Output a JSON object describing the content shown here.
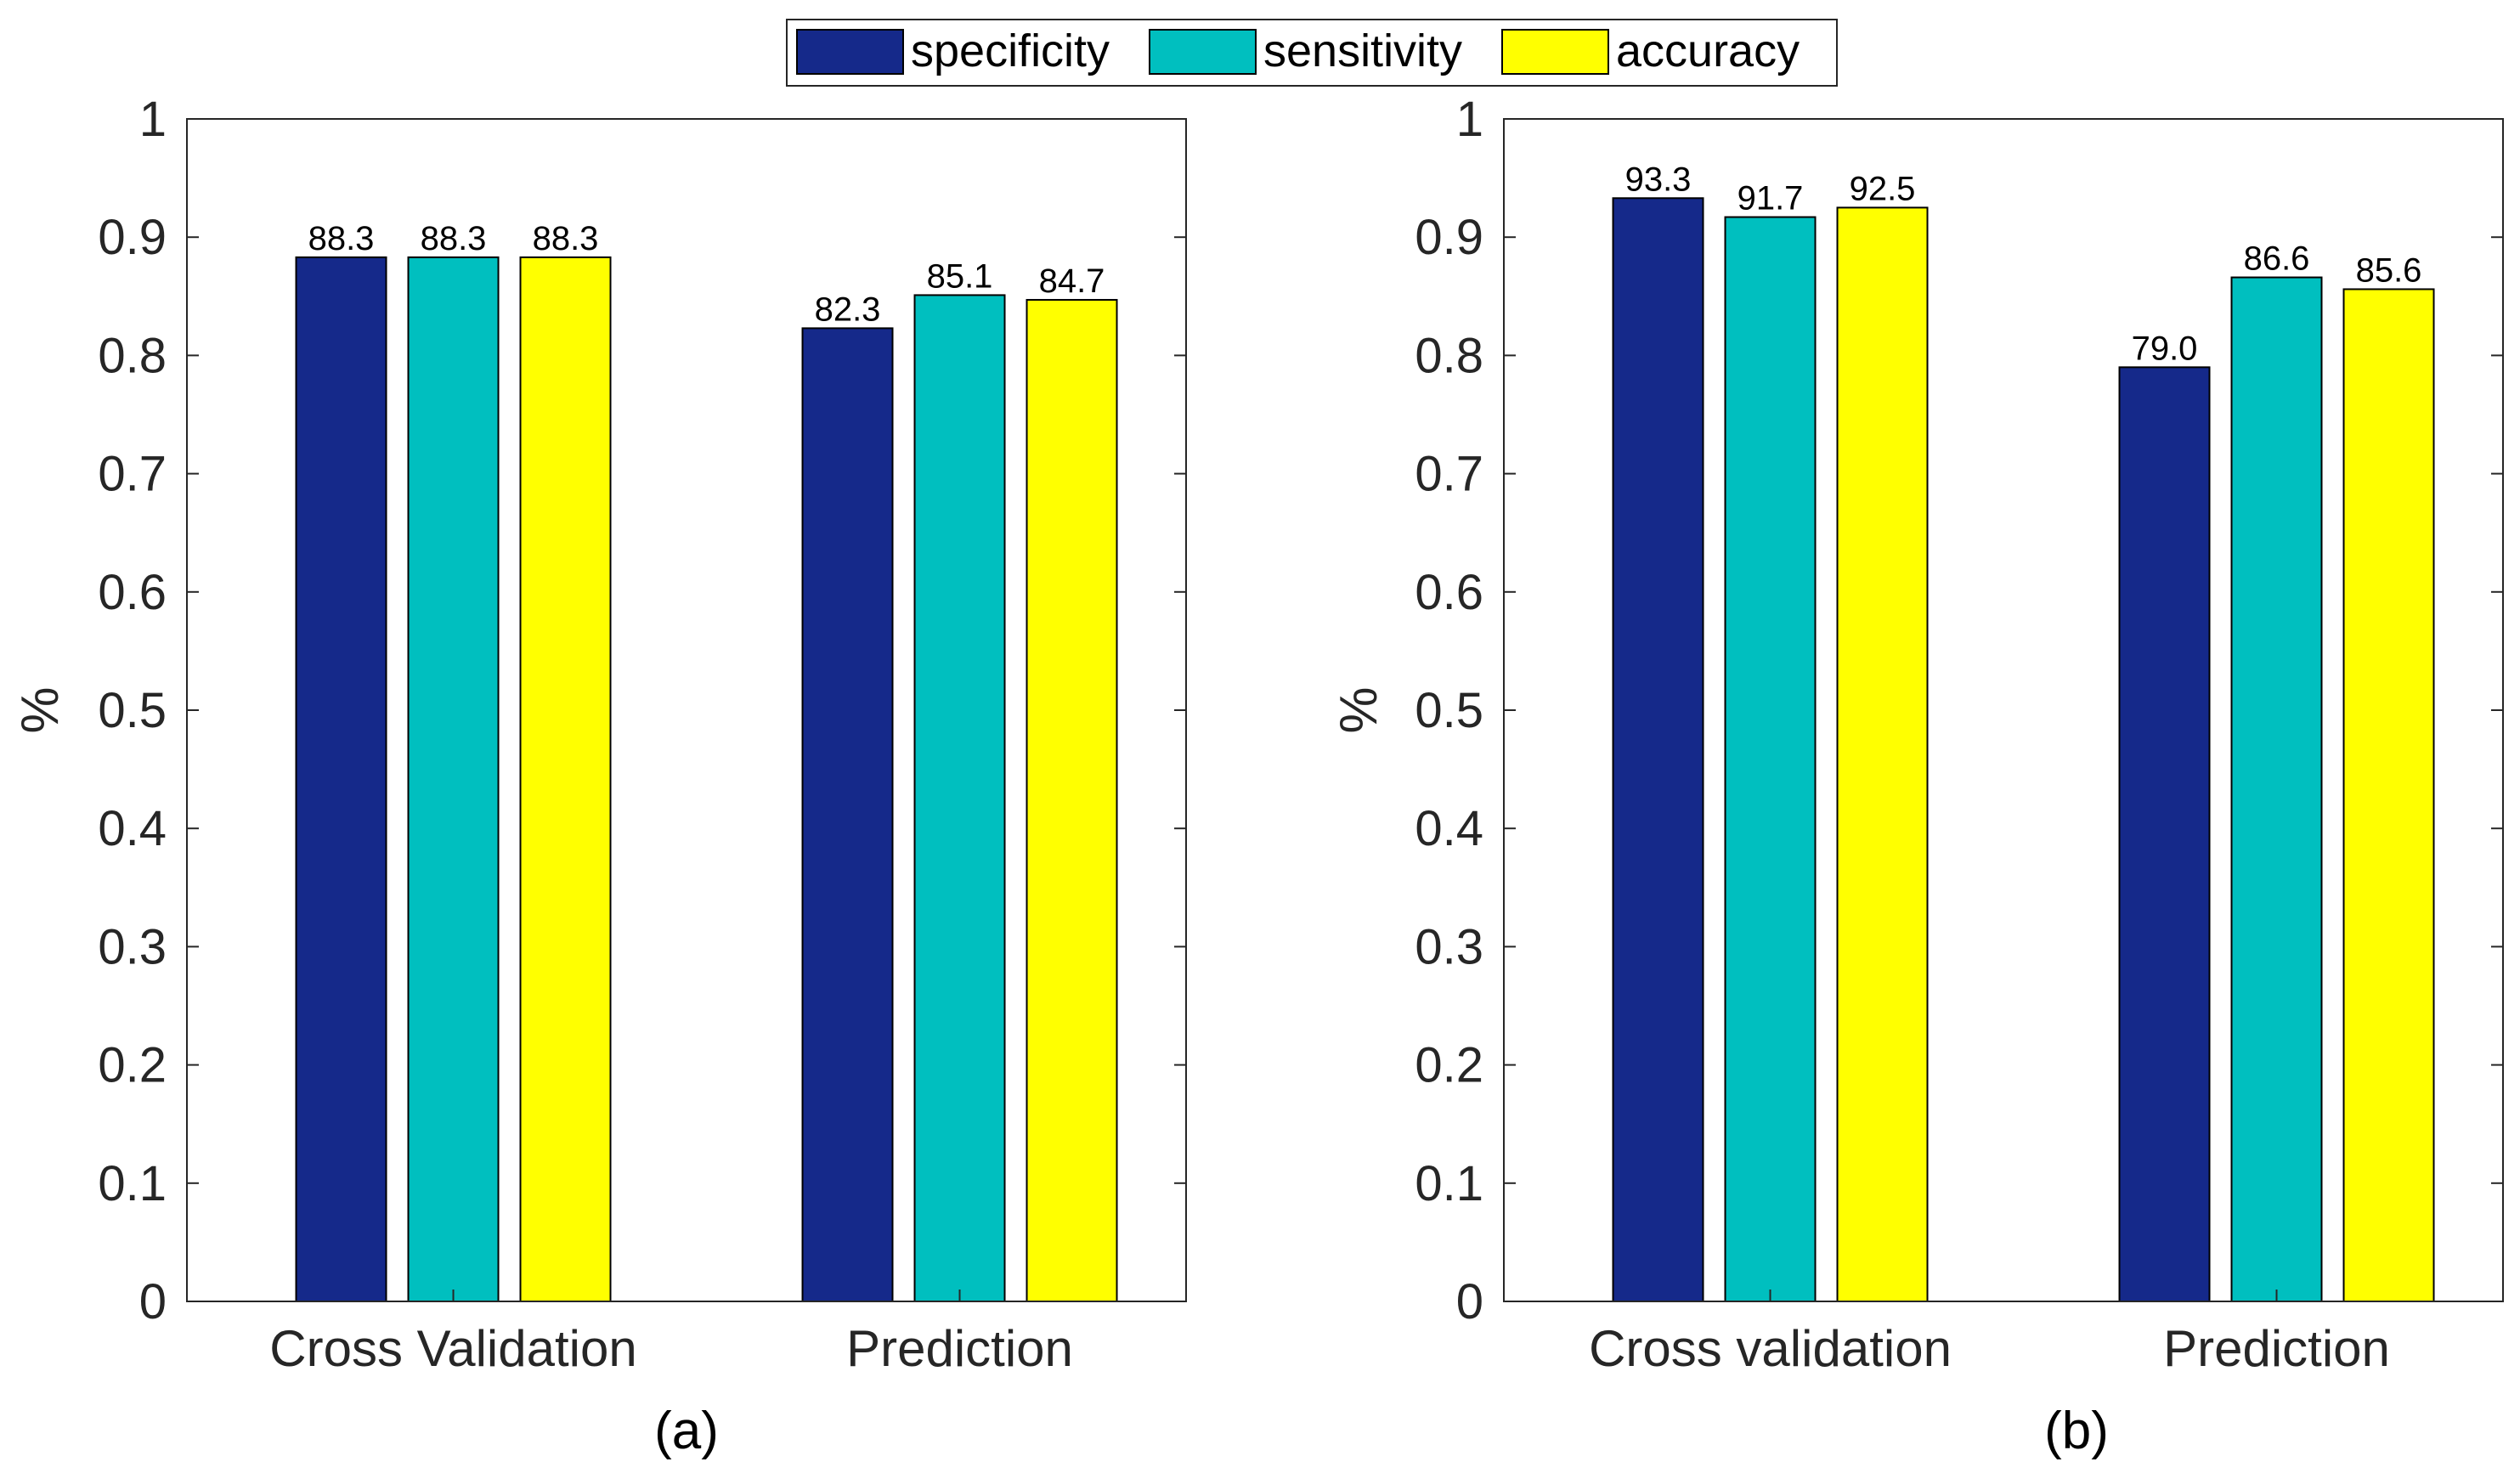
{
  "legend": {
    "entries": [
      {
        "label": "specificity",
        "color": "#15298A"
      },
      {
        "label": "sensitivity",
        "color": "#00BFBF"
      },
      {
        "label": "accuracy",
        "color": "#FFFF00"
      }
    ]
  },
  "chart_data": [
    {
      "type": "bar",
      "panel_label": "(a)",
      "title": "",
      "xlabel": "",
      "ylabel": "%",
      "ylim": [
        0,
        1
      ],
      "yticks": [
        "0",
        "0.1",
        "0.2",
        "0.3",
        "0.4",
        "0.5",
        "0.6",
        "0.7",
        "0.8",
        "0.9",
        "1"
      ],
      "categories": [
        "Cross Validation",
        "Prediction"
      ],
      "series": [
        {
          "name": "specificity",
          "color": "#15298A",
          "values": [
            0.883,
            0.823
          ],
          "labels": [
            "88.3",
            "82.3"
          ]
        },
        {
          "name": "sensitivity",
          "color": "#00BFBF",
          "values": [
            0.883,
            0.851
          ],
          "labels": [
            "88.3",
            "85.1"
          ]
        },
        {
          "name": "accuracy",
          "color": "#FFFF00",
          "values": [
            0.883,
            0.847
          ],
          "labels": [
            "88.3",
            "84.7"
          ]
        }
      ]
    },
    {
      "type": "bar",
      "panel_label": "(b)",
      "title": "",
      "xlabel": "",
      "ylabel": "%",
      "ylim": [
        0,
        1
      ],
      "yticks": [
        "0",
        "0.1",
        "0.2",
        "0.3",
        "0.4",
        "0.5",
        "0.6",
        "0.7",
        "0.8",
        "0.9",
        "1"
      ],
      "categories": [
        "Cross validation",
        "Prediction"
      ],
      "series": [
        {
          "name": "specificity",
          "color": "#15298A",
          "values": [
            0.933,
            0.79
          ],
          "labels": [
            "93.3",
            "79.0"
          ]
        },
        {
          "name": "sensitivity",
          "color": "#00BFBF",
          "values": [
            0.917,
            0.866
          ],
          "labels": [
            "91.7",
            "86.6"
          ]
        },
        {
          "name": "accuracy",
          "color": "#FFFF00",
          "values": [
            0.925,
            0.856
          ],
          "labels": [
            "92.5",
            "85.6"
          ]
        }
      ]
    }
  ]
}
